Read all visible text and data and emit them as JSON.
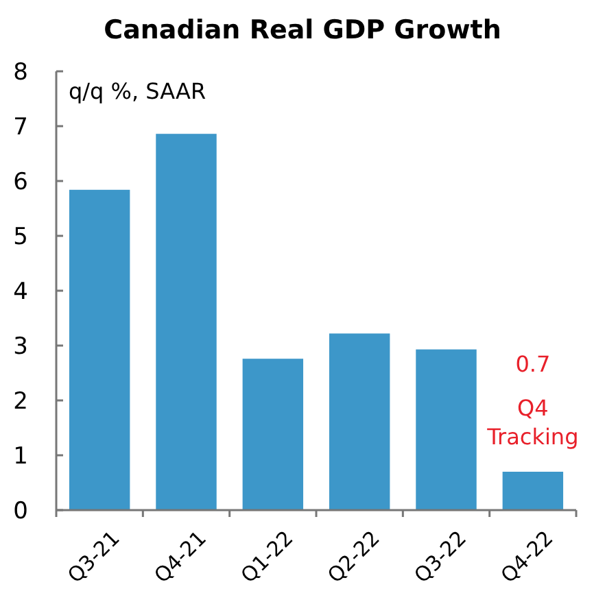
{
  "chart_data": {
    "type": "bar",
    "title": "Canadian Real GDP Growth",
    "ylabel": "q/q %, SAAR",
    "categories": [
      "Q3-21",
      "Q4-21",
      "Q1-22",
      "Q2-22",
      "Q3-22",
      "Q4-22"
    ],
    "values": [
      5.84,
      6.86,
      2.76,
      3.22,
      2.93,
      0.7
    ],
    "color": "#3d97c9",
    "annotations": [
      "0.7",
      "Q4 Tracking"
    ],
    "ylim": [
      0,
      8
    ],
    "yticks": [
      0,
      1,
      2,
      3,
      4,
      5,
      6,
      7,
      8
    ],
    "grid": false
  }
}
